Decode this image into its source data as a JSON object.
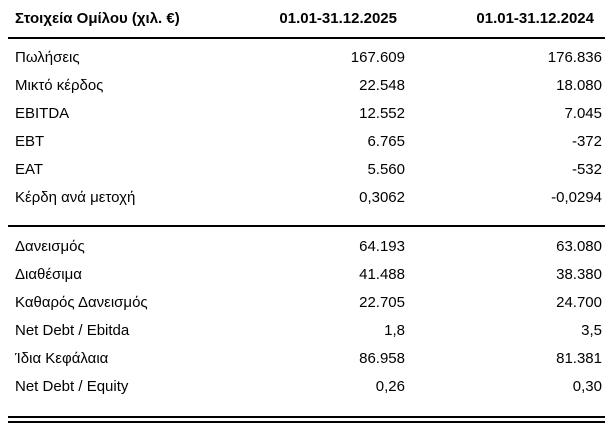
{
  "colors": {
    "background": "#ffffff",
    "text": "#000000",
    "rule": "#000000"
  },
  "table": {
    "header": {
      "label": "Στοιχεία Ομίλου (χιλ. €)",
      "col_2025": "01.01-31.12.2025",
      "col_2024": "01.01-31.12.2024"
    },
    "sections": [
      {
        "rows": [
          {
            "label": "Πωλήσεις",
            "v2025": "167.609",
            "v2024": "176.836"
          },
          {
            "label": "Μικτό κέρδος",
            "v2025": "22.548",
            "v2024": "18.080"
          },
          {
            "label": "EBITDA",
            "v2025": "12.552",
            "v2024": "7.045"
          },
          {
            "label": "EBT",
            "v2025": "6.765",
            "v2024": "-372"
          },
          {
            "label": "EAT",
            "v2025": "5.560",
            "v2024": "-532"
          },
          {
            "label": "Κέρδη ανά μετοχή",
            "v2025": "0,3062",
            "v2024": "-0,0294"
          }
        ]
      },
      {
        "rows": [
          {
            "label": "Δανεισμός",
            "v2025": "64.193",
            "v2024": "63.080"
          },
          {
            "label": "Διαθέσιμα",
            "v2025": "41.488",
            "v2024": "38.380"
          },
          {
            "label": "Καθαρός Δανεισμός",
            "v2025": "22.705",
            "v2024": "24.700"
          },
          {
            "label": "Net Debt / Ebitda",
            "v2025": "1,8",
            "v2024": "3,5"
          },
          {
            "label": "Ίδια Κεφάλαια",
            "v2025": "86.958",
            "v2024": "81.381"
          },
          {
            "label": "Net Debt / Equity",
            "v2025": "0,26",
            "v2024": "0,30"
          }
        ]
      }
    ]
  }
}
